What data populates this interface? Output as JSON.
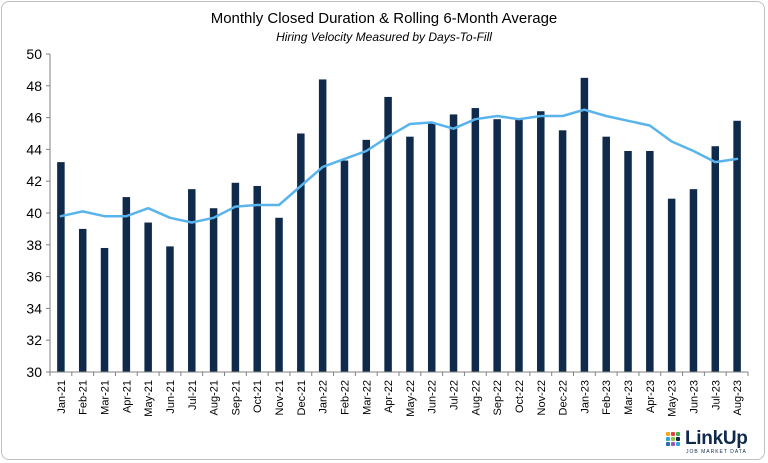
{
  "chart_data": {
    "type": "bar",
    "title": "Monthly Closed Duration & Rolling 6-Month Average",
    "subtitle": "Hiring Velocity Measured by Days-To-Fill",
    "xlabel": "",
    "ylabel": "",
    "ylim": [
      30,
      50
    ],
    "yticks": [
      30,
      32,
      34,
      36,
      38,
      40,
      42,
      44,
      46,
      48,
      50
    ],
    "grid": false,
    "categories": [
      "Jan-21",
      "Feb-21",
      "Mar-21",
      "Apr-21",
      "May-21",
      "Jun-21",
      "Jul-21",
      "Aug-21",
      "Sep-21",
      "Oct-21",
      "Nov-21",
      "Dec-21",
      "Jan-22",
      "Feb-22",
      "Mar-22",
      "Apr-22",
      "May-22",
      "Jun-22",
      "Jul-22",
      "Aug-22",
      "Sep-22",
      "Oct-22",
      "Nov-22",
      "Dec-22",
      "Jan-23",
      "Feb-23",
      "Mar-23",
      "Apr-23",
      "May-23",
      "Jun-23",
      "Jul-23",
      "Aug-23"
    ],
    "series": [
      {
        "type": "bar",
        "color": "#0f2a4a",
        "values": [
          43.2,
          39.0,
          37.8,
          41.0,
          39.4,
          37.9,
          41.5,
          40.3,
          41.9,
          41.7,
          39.7,
          45.0,
          48.4,
          43.3,
          44.6,
          47.3,
          44.8,
          45.7,
          46.2,
          46.6,
          45.9,
          45.9,
          46.4,
          45.2,
          48.5,
          44.8,
          43.9,
          43.9,
          40.9,
          41.5,
          44.2,
          45.8
        ]
      },
      {
        "type": "line",
        "color": "#5ab4ec",
        "values": [
          39.8,
          40.1,
          39.8,
          39.8,
          40.3,
          39.7,
          39.4,
          39.7,
          40.4,
          40.5,
          40.5,
          41.7,
          42.9,
          43.4,
          43.9,
          44.8,
          45.6,
          45.7,
          45.3,
          45.9,
          46.1,
          45.9,
          46.1,
          46.1,
          46.5,
          46.1,
          45.8,
          45.5,
          44.5,
          43.9,
          43.2,
          43.4
        ]
      }
    ]
  },
  "logo": {
    "name": "LinkUp",
    "tagline": "JOB MARKET DATA",
    "dot_colors": [
      "#f5a623",
      "#e0463b",
      "#39b54a",
      "#29a8e0",
      "#8dc63f",
      "#0f2a4a",
      "#1f6fb2",
      "#9b59b6",
      "#29a8e0"
    ]
  }
}
